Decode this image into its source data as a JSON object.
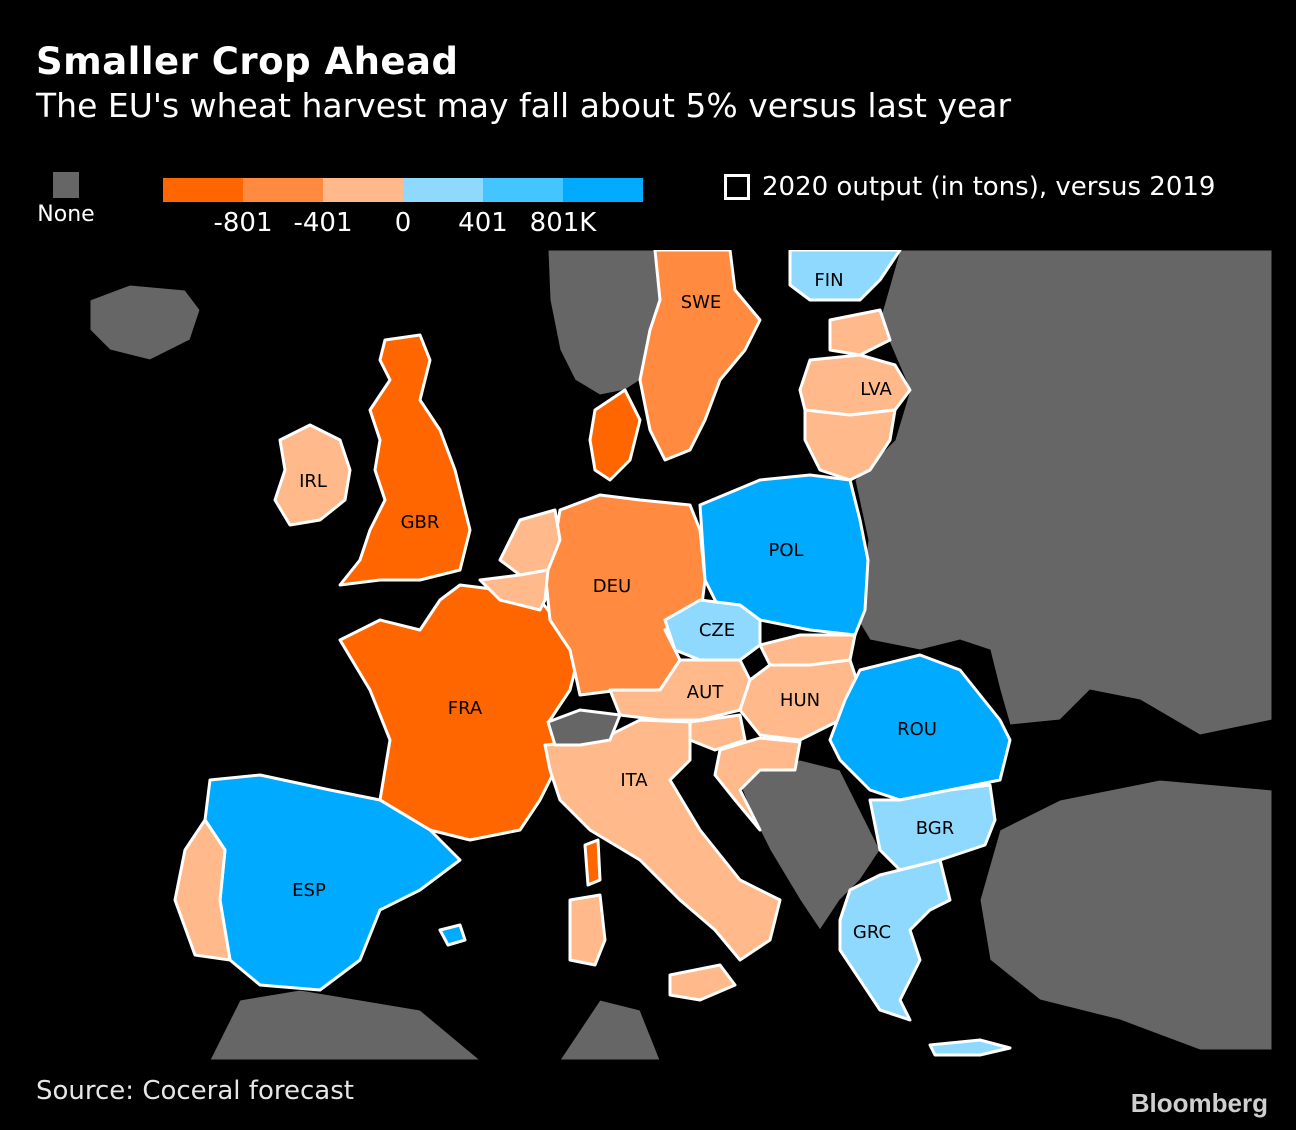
{
  "title": "Smaller Crop Ahead",
  "subtitle": "The EU's wheat harvest may fall about 5% versus last year",
  "legend": {
    "none_label": "None",
    "none_color": "#666666",
    "scale_colors": [
      "#ff6600",
      "#ff8a40",
      "#ffb98a",
      "#8fd9ff",
      "#45c5ff",
      "#00aaff"
    ],
    "scale_ticks": [
      "-801",
      "-401",
      "0",
      "401",
      "801K"
    ],
    "box_label": "2020 output (in tons), versus 2019"
  },
  "map": {
    "countries": [
      {
        "code": "GBR",
        "label": "GBR",
        "color": "#ff6600"
      },
      {
        "code": "FRA",
        "label": "FRA",
        "color": "#ff6600"
      },
      {
        "code": "DNK",
        "label": "",
        "color": "#ff6600"
      },
      {
        "code": "DEU",
        "label": "DEU",
        "color": "#ff8a40"
      },
      {
        "code": "SWE",
        "label": "SWE",
        "color": "#ff8a40"
      },
      {
        "code": "IRL",
        "label": "IRL",
        "color": "#ffb98a"
      },
      {
        "code": "NLD",
        "label": "",
        "color": "#ffb98a"
      },
      {
        "code": "BEL",
        "label": "",
        "color": "#ffb98a"
      },
      {
        "code": "AUT",
        "label": "AUT",
        "color": "#ffb98a"
      },
      {
        "code": "HUN",
        "label": "HUN",
        "color": "#ffb98a"
      },
      {
        "code": "ITA",
        "label": "ITA",
        "color": "#ffb98a"
      },
      {
        "code": "PRT",
        "label": "",
        "color": "#ffb98a"
      },
      {
        "code": "LVA",
        "label": "LVA",
        "color": "#ffb98a"
      },
      {
        "code": "EST",
        "label": "",
        "color": "#ffb98a"
      },
      {
        "code": "LTU",
        "label": "",
        "color": "#ffb98a"
      },
      {
        "code": "SVK",
        "label": "",
        "color": "#ffb98a"
      },
      {
        "code": "SVN",
        "label": "",
        "color": "#ffb98a"
      },
      {
        "code": "HRV",
        "label": "",
        "color": "#ffb98a"
      },
      {
        "code": "CZE",
        "label": "CZE",
        "color": "#8fd9ff"
      },
      {
        "code": "FIN",
        "label": "FIN",
        "color": "#8fd9ff"
      },
      {
        "code": "BGR",
        "label": "BGR",
        "color": "#8fd9ff"
      },
      {
        "code": "GRC",
        "label": "GRC",
        "color": "#8fd9ff"
      },
      {
        "code": "POL",
        "label": "POL",
        "color": "#00aaff"
      },
      {
        "code": "ESP",
        "label": "ESP",
        "color": "#00aaff"
      },
      {
        "code": "ROU",
        "label": "ROU",
        "color": "#00aaff"
      },
      {
        "code": "CHE",
        "label": "",
        "color": "#666666"
      }
    ]
  },
  "source": "Source: Coceral forecast",
  "brand": "Bloomberg"
}
